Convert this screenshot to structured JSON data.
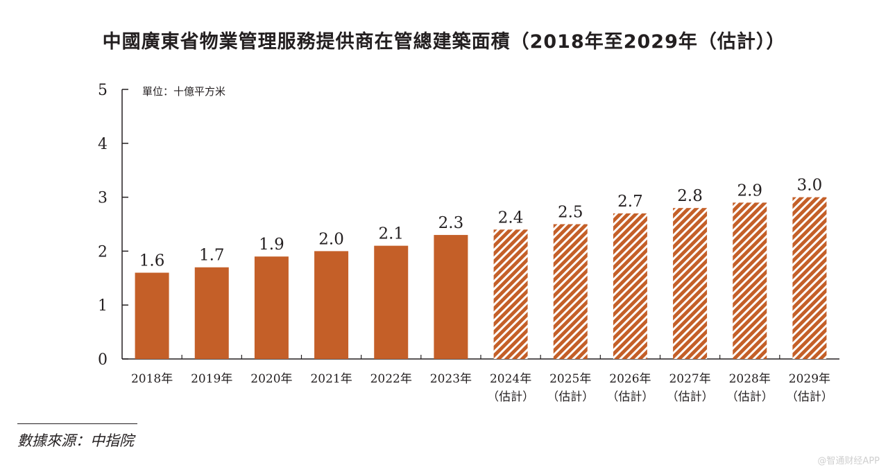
{
  "title": "中國廣東省物業管理服務提供商在管總建築面積（2018年至2029年（估計））",
  "source_note": "數據來源：中指院",
  "watermark": "@智通财经APP",
  "colors": {
    "bar": "#c45f28",
    "text": "#231f20",
    "axis": "#231f20"
  },
  "chart_data": {
    "type": "bar",
    "title": "中國廣東省物業管理服務提供商在管總建築面積（2018年至2029年（估計））",
    "unit_label": "單位：十億平方米",
    "xlabel": "",
    "ylabel": "",
    "ylim": [
      0,
      5
    ],
    "yticks": [
      0,
      1,
      2,
      3,
      4,
      5
    ],
    "categories": [
      [
        "2018年"
      ],
      [
        "2019年"
      ],
      [
        "2020年"
      ],
      [
        "2021年"
      ],
      [
        "2022年"
      ],
      [
        "2023年"
      ],
      [
        "2024年",
        "（估計）"
      ],
      [
        "2025年",
        "（估計）"
      ],
      [
        "2026年",
        "（估計）"
      ],
      [
        "2027年",
        "（估計）"
      ],
      [
        "2028年",
        "（估計）"
      ],
      [
        "2029年",
        "（估計）"
      ]
    ],
    "values": [
      1.6,
      1.7,
      1.9,
      2.0,
      2.1,
      2.3,
      2.4,
      2.5,
      2.7,
      2.8,
      2.9,
      3.0
    ],
    "value_labels": [
      "1.6",
      "1.7",
      "1.9",
      "2.0",
      "2.1",
      "2.3",
      "2.4",
      "2.5",
      "2.7",
      "2.8",
      "2.9",
      "3.0"
    ],
    "estimated": [
      false,
      false,
      false,
      false,
      false,
      false,
      true,
      true,
      true,
      true,
      true,
      true
    ],
    "grid": false,
    "legend": "none"
  }
}
